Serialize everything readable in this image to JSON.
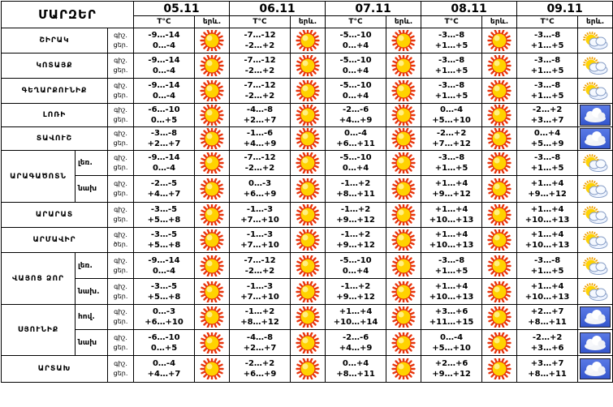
{
  "header": {
    "region_title": "ՄԱՐԶԵՐ",
    "temp_label": "T°C",
    "icon_label": "երև.",
    "dates": [
      "05.11",
      "06.11",
      "07.11",
      "08.11",
      "09.11"
    ]
  },
  "rows": [
    {
      "region": "ՇԻՐԱԿ",
      "sub": "",
      "labels": [
        "գիշ.",
        "ցեր."
      ],
      "days": [
        {
          "night": "-9…-14",
          "day": "0…-4",
          "icon": "sun-icon"
        },
        {
          "night": "-7…-12",
          "day": "-2…+2",
          "icon": "sun-icon"
        },
        {
          "night": "-5…-10",
          "day": "0…+4",
          "icon": "sun-icon"
        },
        {
          "night": "-3…-8",
          "day": "+1…+5",
          "icon": "sun-icon"
        },
        {
          "night": "-3…-8",
          "day": "+1…+5",
          "icon": "partly-cloudy-icon"
        }
      ]
    },
    {
      "region": "ԿՈՏԱՅՔ",
      "sub": "",
      "labels": [
        "գիշ.",
        "ցեր."
      ],
      "days": [
        {
          "night": "-9…-14",
          "day": "0…-4",
          "icon": "sun-icon"
        },
        {
          "night": "-7…-12",
          "day": "-2…+2",
          "icon": "sun-icon"
        },
        {
          "night": "-5…-10",
          "day": "0…+4",
          "icon": "sun-icon"
        },
        {
          "night": "-3…-8",
          "day": "+1…+5",
          "icon": "sun-icon"
        },
        {
          "night": "-3…-8",
          "day": "+1…+5",
          "icon": "partly-cloudy-icon"
        }
      ]
    },
    {
      "region": "ԳԵՂԱՐՔՈՒՆԻՔ",
      "sub": "",
      "labels": [
        "գիշ.",
        "ցեր."
      ],
      "days": [
        {
          "night": "-9…-14",
          "day": "0…-4",
          "icon": "sun-icon"
        },
        {
          "night": "-7…-12",
          "day": "-2…+2",
          "icon": "sun-icon"
        },
        {
          "night": "-5…-10",
          "day": "0…+4",
          "icon": "sun-icon"
        },
        {
          "night": "-3…-8",
          "day": "+1…+5",
          "icon": "sun-icon"
        },
        {
          "night": "-3…-8",
          "day": "+1…+5",
          "icon": "partly-cloudy-icon"
        }
      ]
    },
    {
      "region": "ԼՈՌԻ",
      "sub": "",
      "labels": [
        "գիշ.",
        "ցեր."
      ],
      "days": [
        {
          "night": "-6…-10",
          "day": "0…+5",
          "icon": "sun-icon"
        },
        {
          "night": "-4…-8",
          "day": "+2…+7",
          "icon": "sun-icon"
        },
        {
          "night": "-2…-6",
          "day": "+4…+9",
          "icon": "sun-icon"
        },
        {
          "night": "0…-4",
          "day": "+5…+10",
          "icon": "sun-icon"
        },
        {
          "night": "-2…+2",
          "day": "+3…+7",
          "icon": "cloud-icon"
        }
      ]
    },
    {
      "region": "ՏԱՎՈՒՇ",
      "sub": "",
      "labels": [
        "գիշ.",
        "ցեր."
      ],
      "days": [
        {
          "night": "-3…-8",
          "day": "+2…+7",
          "icon": "sun-icon"
        },
        {
          "night": "-1…-6",
          "day": "+4…+9",
          "icon": "sun-icon"
        },
        {
          "night": "0…-4",
          "day": "+6…+11",
          "icon": "sun-icon"
        },
        {
          "night": "-2…+2",
          "day": "+7…+12",
          "icon": "sun-icon"
        },
        {
          "night": "0…+4",
          "day": "+5…+9",
          "icon": "cloud-icon"
        }
      ]
    },
    {
      "region": "ԱՐԱԳԱԾՈՏՆ",
      "sub": "լեռ.",
      "labels": [
        "գիշ.",
        "ցեր."
      ],
      "days": [
        {
          "night": "-9…-14",
          "day": "0…-4",
          "icon": "sun-icon"
        },
        {
          "night": "-7…-12",
          "day": "-2…+2",
          "icon": "sun-icon"
        },
        {
          "night": "-5…-10",
          "day": "0…+4",
          "icon": "sun-icon"
        },
        {
          "night": "-3…-8",
          "day": "+1…+5",
          "icon": "sun-icon"
        },
        {
          "night": "-3…-8",
          "day": "+1…+5",
          "icon": "partly-cloudy-icon"
        }
      ]
    },
    {
      "region": "",
      "sub": "նախ",
      "labels": [
        "գիշ.",
        "ցեր."
      ],
      "days": [
        {
          "night": "-2…-5",
          "day": "+4…+7",
          "icon": "sun-icon"
        },
        {
          "night": "0…-3",
          "day": "+6…+9",
          "icon": "sun-icon"
        },
        {
          "night": "-1…+2",
          "day": "+8…+11",
          "icon": "sun-icon"
        },
        {
          "night": "+1…+4",
          "day": "+9…+12",
          "icon": "sun-icon"
        },
        {
          "night": "+1…+4",
          "day": "+9…+12",
          "icon": "partly-cloudy-icon"
        }
      ]
    },
    {
      "region": "ԱՐԱՐԱՏ",
      "sub": "",
      "labels": [
        "գիշ.",
        "ցեր."
      ],
      "days": [
        {
          "night": "-3…-5",
          "day": "+5…+8",
          "icon": "sun-icon"
        },
        {
          "night": "-1…-3",
          "day": "+7…+10",
          "icon": "sun-icon"
        },
        {
          "night": "-1…+2",
          "day": "+9…+12",
          "icon": "sun-icon"
        },
        {
          "night": "+1…+4",
          "day": "+10…+13",
          "icon": "sun-icon"
        },
        {
          "night": "+1…+4",
          "day": "+10…+13",
          "icon": "partly-cloudy-icon"
        }
      ]
    },
    {
      "region": "ԱՐՄԱՎԻՐ",
      "sub": "",
      "labels": [
        "գիշ.",
        "ծեր."
      ],
      "days": [
        {
          "night": "-3…-5",
          "day": "+5…+8",
          "icon": "sun-icon"
        },
        {
          "night": "-1…-3",
          "day": "+7…+10",
          "icon": "sun-icon"
        },
        {
          "night": "-1…+2",
          "day": "+9…+12",
          "icon": "sun-icon"
        },
        {
          "night": "+1…+4",
          "day": "+10…+13",
          "icon": "sun-icon"
        },
        {
          "night": "+1…+4",
          "day": "+10…+13",
          "icon": "partly-cloudy-icon"
        }
      ]
    },
    {
      "region": "ՎԱՅՈՑ ՁՈՐ",
      "sub": "լեռ.",
      "labels": [
        "գիշ.",
        "ցեր."
      ],
      "days": [
        {
          "night": "-9…-14",
          "day": "0…-4",
          "icon": "sun-icon"
        },
        {
          "night": "-7…-12",
          "day": "-2…+2",
          "icon": "sun-icon"
        },
        {
          "night": "-5…-10",
          "day": "0…+4",
          "icon": "sun-icon"
        },
        {
          "night": "-3…-8",
          "day": "+1…+5",
          "icon": "sun-icon"
        },
        {
          "night": "-3…-8",
          "day": "+1…+5",
          "icon": "partly-cloudy-icon"
        }
      ]
    },
    {
      "region": "",
      "sub": "նախ.",
      "labels": [
        "գիշ.",
        "ցեր."
      ],
      "days": [
        {
          "night": "-3…-5",
          "day": "+5…+8",
          "icon": "sun-icon"
        },
        {
          "night": "-1…-3",
          "day": "+7…+10",
          "icon": "sun-icon"
        },
        {
          "night": "-1…+2",
          "day": "+9…+12",
          "icon": "sun-icon"
        },
        {
          "night": "+1…+4",
          "day": "+10…+13",
          "icon": "sun-icon"
        },
        {
          "night": "+1…+4",
          "day": "+10…+13",
          "icon": "partly-cloudy-icon"
        }
      ]
    },
    {
      "region": "ՍՅՈՒՆԻՔ",
      "sub": "հով.",
      "labels": [
        "գիշ.",
        "ցեր."
      ],
      "days": [
        {
          "night": "0…-3",
          "day": "+6…+10",
          "icon": "sun-icon"
        },
        {
          "night": "-1…+2",
          "day": "+8…+12",
          "icon": "sun-icon"
        },
        {
          "night": "+1…+4",
          "day": "+10…+14",
          "icon": "sun-icon"
        },
        {
          "night": "+3…+6",
          "day": "+11…+15",
          "icon": "sun-icon"
        },
        {
          "night": "+2…+7",
          "day": "+8…+11",
          "icon": "cloud-icon"
        }
      ]
    },
    {
      "region": "",
      "sub": "նախ",
      "labels": [
        "գիշ.",
        "ցեր."
      ],
      "days": [
        {
          "night": "-6…-10",
          "day": "0…+5",
          "icon": "sun-icon"
        },
        {
          "night": "-4…-8",
          "day": "+2…+7",
          "icon": "sun-icon"
        },
        {
          "night": "-2…-6",
          "day": "+4…+9",
          "icon": "sun-icon"
        },
        {
          "night": "0…-4",
          "day": "+5…+10",
          "icon": "sun-icon"
        },
        {
          "night": "-2…+2",
          "day": "+3…+6",
          "icon": "cloud-icon"
        }
      ]
    },
    {
      "region": "ԱՐՏԱԽ",
      "sub": "",
      "labels": [
        "գիշ.",
        "ցեր."
      ],
      "days": [
        {
          "night": "0…-4",
          "day": "+4…+7",
          "icon": "sun-icon"
        },
        {
          "night": "-2…+2",
          "day": "+6…+9",
          "icon": "sun-icon"
        },
        {
          "night": "0…+4",
          "day": "+8…+11",
          "icon": "sun-icon"
        },
        {
          "night": "+2…+6",
          "day": "+9…+12",
          "icon": "sun-icon"
        },
        {
          "night": "+3…+7",
          "day": "+8…+11",
          "icon": "cloud-icon"
        }
      ]
    }
  ],
  "colors": {
    "sun_fill": "#ffd200",
    "sun_rays": "#e8340c",
    "sky_blue": "#3355cc"
  }
}
